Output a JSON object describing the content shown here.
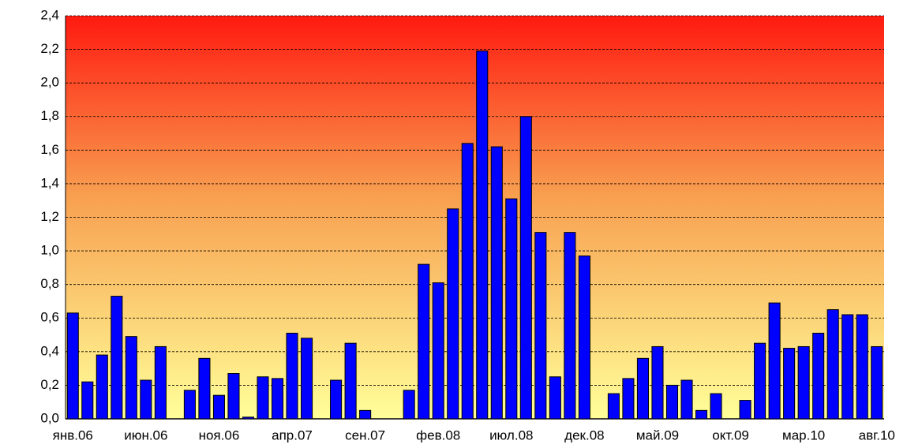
{
  "chart_data": {
    "type": "bar",
    "categories": [
      "янв.06",
      null,
      null,
      null,
      null,
      "июн.06",
      null,
      null,
      null,
      null,
      "ноя.06",
      null,
      null,
      null,
      null,
      "апр.07",
      null,
      null,
      null,
      null,
      "сен.07",
      null,
      null,
      null,
      null,
      "фев.08",
      null,
      null,
      null,
      null,
      "июл.08",
      null,
      null,
      null,
      null,
      "дек.08",
      null,
      null,
      null,
      null,
      "май.09",
      null,
      null,
      null,
      null,
      "окт.09",
      null,
      null,
      null,
      null,
      "мар.10",
      null,
      null,
      null,
      null,
      "авг.10"
    ],
    "values": [
      0.63,
      0.22,
      0.38,
      0.73,
      0.49,
      0.23,
      0.43,
      null,
      0.17,
      0.36,
      0.14,
      0.27,
      0.01,
      0.25,
      0.24,
      0.51,
      0.48,
      null,
      0.23,
      0.45,
      0.05,
      null,
      null,
      0.17,
      0.92,
      0.81,
      1.25,
      1.64,
      2.19,
      1.62,
      1.31,
      1.8,
      1.11,
      0.25,
      1.11,
      0.97,
      null,
      0.15,
      0.24,
      0.36,
      0.43,
      0.2,
      0.23,
      0.05,
      0.15,
      null,
      0.11,
      0.45,
      0.69,
      0.42,
      0.43,
      0.51,
      0.65,
      0.62,
      0.62,
      0.43
    ],
    "color": "#0000ff",
    "ylim": [
      0,
      2.4
    ],
    "yticks": [
      {
        "value": 0,
        "label": "0,0"
      },
      {
        "value": 0.2,
        "label": "0,2"
      },
      {
        "value": 0.4,
        "label": "0,4"
      },
      {
        "value": 0.6,
        "label": "0,6"
      },
      {
        "value": 0.8,
        "label": "0,8"
      },
      {
        "value": 1,
        "label": "1,0"
      },
      {
        "value": 1.2,
        "label": "1,2"
      },
      {
        "value": 1.4,
        "label": "1,4"
      },
      {
        "value": 1.6,
        "label": "1,6"
      },
      {
        "value": 1.8,
        "label": "1,8"
      },
      {
        "value": 2,
        "label": "2,0"
      },
      {
        "value": 2.2,
        "label": "2,2"
      },
      {
        "value": 2.4,
        "label": "2,4"
      }
    ],
    "grid": true
  }
}
